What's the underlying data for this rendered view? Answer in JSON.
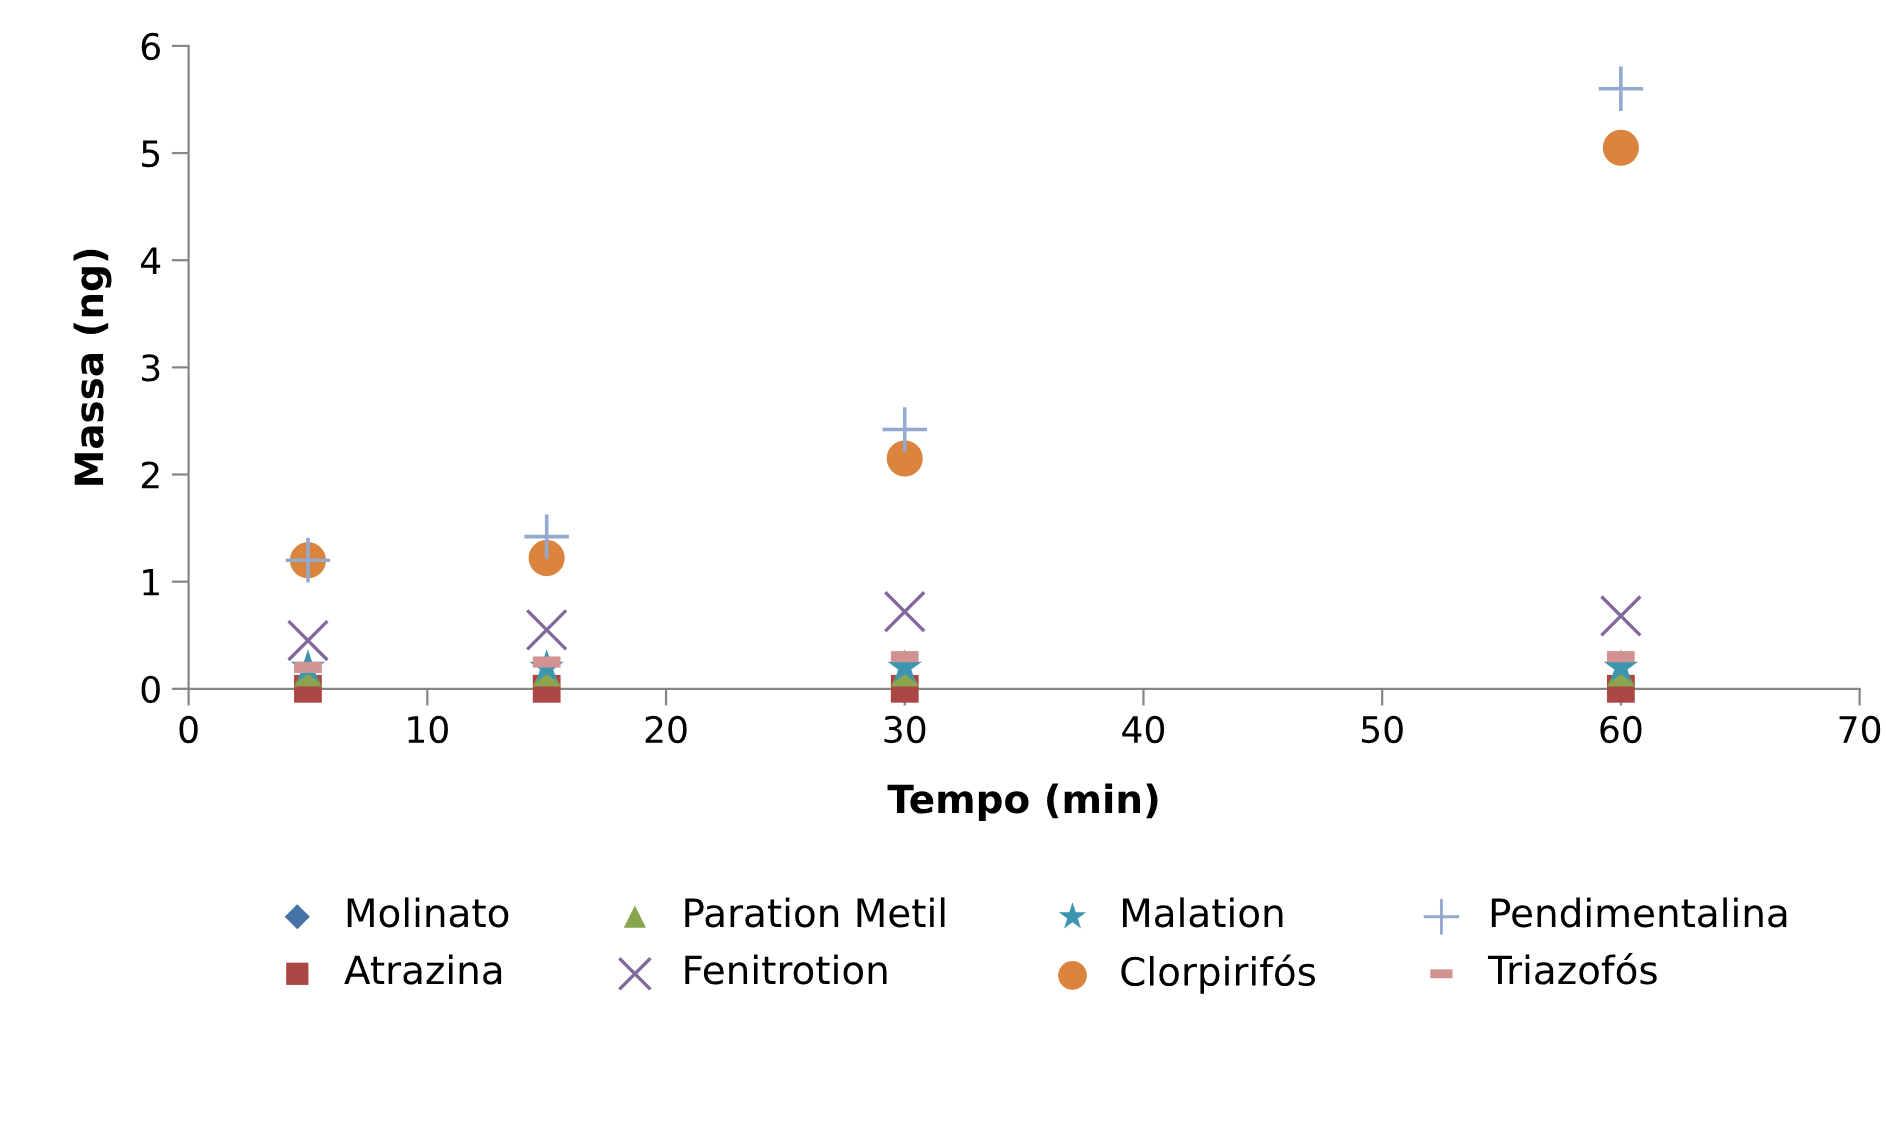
{
  "chart_data": {
    "type": "scatter",
    "xlabel": "Tempo (min)",
    "ylabel": "Massa (ng)",
    "xlim": [
      0,
      70
    ],
    "xticks": [
      0,
      10,
      20,
      30,
      40,
      50,
      60,
      70
    ],
    "ylim": [
      0,
      6
    ],
    "yticks": [
      0,
      1,
      2,
      3,
      4,
      5,
      6
    ],
    "grid": false,
    "legend": "bottom",
    "x": [
      5,
      15,
      30,
      60
    ],
    "series": [
      {
        "name": "Molinato",
        "color": "#4572a7",
        "marker": "diamond",
        "values": [
          null,
          null,
          null,
          null
        ]
      },
      {
        "name": "Atrazina",
        "color": "#aa4643",
        "marker": "square",
        "values": [
          0,
          0,
          0,
          0
        ]
      },
      {
        "name": "Paration Metil",
        "color": "#89a54e",
        "marker": "triangle",
        "values": [
          0.15,
          0.15,
          0.15,
          0.15
        ]
      },
      {
        "name": "Fenitrotion",
        "color": "#80699b",
        "marker": "cross",
        "values": [
          0.45,
          0.55,
          0.72,
          0.68
        ]
      },
      {
        "name": "Malation",
        "color": "#3d96ae",
        "marker": "star",
        "values": [
          0.2,
          0.2,
          0.2,
          0.2
        ]
      },
      {
        "name": "Clorpirifós",
        "color": "#db843d",
        "marker": "circle",
        "values": [
          1.2,
          1.22,
          2.15,
          5.05
        ]
      },
      {
        "name": "Pendimentalina",
        "color": "#93a9cf",
        "values": [
          1.2,
          1.42,
          2.42,
          5.6
        ]
      },
      {
        "name": "Triazofós",
        "color": "#d19392",
        "values": [
          0.2,
          0.25,
          0.3,
          0.3
        ]
      }
    ]
  }
}
